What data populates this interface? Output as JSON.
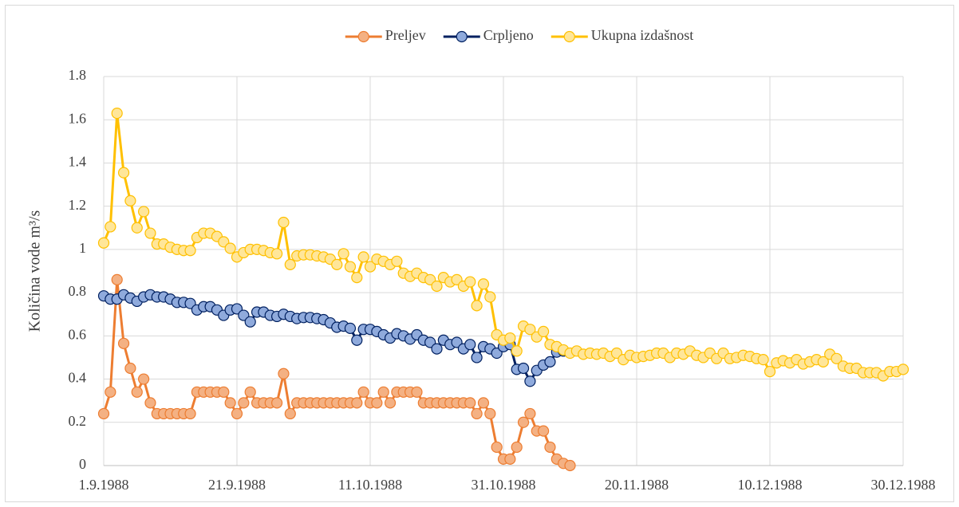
{
  "chart_data": {
    "type": "line",
    "y_label": "Količina vode m³/s",
    "x": [
      "1.9.1988",
      "2.9.1988",
      "3.9.1988",
      "4.9.1988",
      "5.9.1988",
      "6.9.1988",
      "7.9.1988",
      "8.9.1988",
      "9.9.1988",
      "10.9.1988",
      "11.9.1988",
      "12.9.1988",
      "13.9.1988",
      "14.9.1988",
      "15.9.1988",
      "16.9.1988",
      "17.9.1988",
      "18.9.1988",
      "19.9.1988",
      "20.9.1988",
      "21.9.1988",
      "22.9.1988",
      "23.9.1988",
      "24.9.1988",
      "25.9.1988",
      "26.9.1988",
      "27.9.1988",
      "28.9.1988",
      "29.9.1988",
      "30.9.1988",
      "1.10.1988",
      "2.10.1988",
      "3.10.1988",
      "4.10.1988",
      "5.10.1988",
      "6.10.1988",
      "7.10.1988",
      "8.10.1988",
      "9.10.1988",
      "10.10.1988",
      "11.10.1988",
      "12.10.1988",
      "13.10.1988",
      "14.10.1988",
      "15.10.1988",
      "16.10.1988",
      "17.10.1988",
      "18.10.1988",
      "19.10.1988",
      "20.10.1988",
      "21.10.1988",
      "22.10.1988",
      "23.10.1988",
      "24.10.1988",
      "25.10.1988",
      "26.10.1988",
      "27.10.1988",
      "28.10.1988",
      "29.10.1988",
      "30.10.1988",
      "31.10.1988",
      "1.11.1988",
      "2.11.1988",
      "3.11.1988",
      "4.11.1988",
      "5.11.1988",
      "6.11.1988",
      "7.11.1988",
      "8.11.1988",
      "9.11.1988",
      "10.11.1988",
      "11.11.1988",
      "12.11.1988",
      "13.11.1988",
      "14.11.1988",
      "15.11.1988",
      "16.11.1988",
      "17.11.1988",
      "18.11.1988",
      "19.11.1988",
      "20.11.1988",
      "21.11.1988",
      "22.11.1988",
      "23.11.1988",
      "24.11.1988",
      "25.11.1988",
      "26.11.1988",
      "27.11.1988",
      "28.11.1988",
      "29.11.1988",
      "30.11.1988",
      "1.12.1988",
      "2.12.1988",
      "3.12.1988",
      "4.12.1988",
      "5.12.1988",
      "6.12.1988",
      "7.12.1988",
      "8.12.1988",
      "9.12.1988",
      "10.12.1988",
      "11.12.1988",
      "12.12.1988",
      "13.12.1988",
      "14.12.1988",
      "15.12.1988",
      "16.12.1988",
      "17.12.1988",
      "18.12.1988",
      "19.12.1988",
      "20.12.1988",
      "21.12.1988",
      "22.12.1988",
      "23.12.1988",
      "24.12.1988",
      "25.12.1988",
      "26.12.1988",
      "27.12.1988",
      "28.12.1988",
      "29.12.1988",
      "30.12.1988"
    ],
    "xticks": [
      "1.9.1988",
      "21.9.1988",
      "11.10.1988",
      "31.10.1988",
      "20.11.1988",
      "10.12.1988",
      "30.12.1988"
    ],
    "ylim": [
      0,
      1.8
    ],
    "yticks": [
      0,
      0.2,
      0.4,
      0.6,
      0.8,
      1,
      1.2,
      1.4,
      1.6,
      1.8
    ],
    "grid": true,
    "legend": "top",
    "series": [
      {
        "name": "Preljev",
        "color": "#ED7D31",
        "marker_fill": "#F4B183",
        "values": [
          0.24,
          0.34,
          0.86,
          0.565,
          0.45,
          0.34,
          0.4,
          0.29,
          0.24,
          0.24,
          0.24,
          0.24,
          0.24,
          0.24,
          0.34,
          0.34,
          0.34,
          0.34,
          0.34,
          0.29,
          0.24,
          0.29,
          0.34,
          0.29,
          0.29,
          0.29,
          0.29,
          0.425,
          0.24,
          0.29,
          0.29,
          0.29,
          0.29,
          0.29,
          0.29,
          0.29,
          0.29,
          0.29,
          0.29,
          0.34,
          0.29,
          0.29,
          0.34,
          0.29,
          0.34,
          0.34,
          0.34,
          0.34,
          0.29,
          0.29,
          0.29,
          0.29,
          0.29,
          0.29,
          0.29,
          0.29,
          0.24,
          0.29,
          0.24,
          0.085,
          0.03,
          0.03,
          0.085,
          0.2,
          0.24,
          0.16,
          0.16,
          0.085,
          0.03,
          0.01,
          0.0,
          null,
          null,
          null,
          null,
          null,
          null,
          null,
          null,
          null,
          null,
          null,
          null,
          null,
          null,
          null,
          null,
          null,
          null,
          null,
          null,
          null,
          null,
          null,
          null,
          null,
          null,
          null,
          null,
          null,
          null,
          null,
          null,
          null,
          null,
          null,
          null,
          null,
          null,
          null,
          null,
          null,
          null,
          null,
          null,
          null,
          null,
          null,
          null,
          null,
          null
        ]
      },
      {
        "name": "Crpljeno",
        "color": "#002060",
        "marker_fill": "#8FAADC",
        "values": [
          0.785,
          0.77,
          0.77,
          0.79,
          0.775,
          0.76,
          0.78,
          0.79,
          0.78,
          0.78,
          0.77,
          0.755,
          0.755,
          0.75,
          0.72,
          0.735,
          0.735,
          0.72,
          0.695,
          0.72,
          0.725,
          0.695,
          0.665,
          0.71,
          0.71,
          0.695,
          0.69,
          0.7,
          0.69,
          0.68,
          0.685,
          0.685,
          0.68,
          0.675,
          0.66,
          0.64,
          0.645,
          0.635,
          0.58,
          0.63,
          0.63,
          0.62,
          0.605,
          0.59,
          0.61,
          0.6,
          0.585,
          0.605,
          0.58,
          0.57,
          0.54,
          0.58,
          0.56,
          0.57,
          0.54,
          0.56,
          0.5,
          0.55,
          0.54,
          0.52,
          0.55,
          0.56,
          0.445,
          0.45,
          0.39,
          0.44,
          0.465,
          0.48,
          0.525,
          0.53,
          null,
          null,
          null,
          null,
          null,
          null,
          null,
          null,
          null,
          null,
          null,
          null,
          null,
          null,
          null,
          null,
          null,
          null,
          null,
          null,
          null,
          null,
          null,
          null,
          null,
          null,
          null,
          null,
          null,
          null,
          null,
          null,
          null,
          null,
          null,
          null,
          null,
          null,
          null,
          null,
          null,
          null,
          null,
          null,
          null,
          null,
          null,
          null,
          null,
          null,
          null
        ]
      },
      {
        "name": "Ukupna izdašnost",
        "color": "#FFC000",
        "marker_fill": "#FFE699",
        "values": [
          1.03,
          1.105,
          1.63,
          1.355,
          1.225,
          1.1,
          1.175,
          1.075,
          1.025,
          1.025,
          1.01,
          1.0,
          0.995,
          0.995,
          1.055,
          1.075,
          1.075,
          1.06,
          1.035,
          1.005,
          0.965,
          0.985,
          1.0,
          1.0,
          0.995,
          0.985,
          0.98,
          1.125,
          0.93,
          0.97,
          0.975,
          0.975,
          0.97,
          0.965,
          0.955,
          0.93,
          0.98,
          0.92,
          0.87,
          0.965,
          0.92,
          0.955,
          0.945,
          0.93,
          0.945,
          0.89,
          0.875,
          0.89,
          0.87,
          0.86,
          0.83,
          0.87,
          0.85,
          0.86,
          0.83,
          0.85,
          0.74,
          0.84,
          0.78,
          0.605,
          0.58,
          0.59,
          0.53,
          0.645,
          0.63,
          0.595,
          0.62,
          0.56,
          0.55,
          0.535,
          0.52,
          0.53,
          0.515,
          0.52,
          0.515,
          0.52,
          0.505,
          0.52,
          0.49,
          0.51,
          0.5,
          0.505,
          0.51,
          0.52,
          0.52,
          0.5,
          0.52,
          0.515,
          0.53,
          0.51,
          0.5,
          0.52,
          0.495,
          0.52,
          0.495,
          0.5,
          0.51,
          0.505,
          0.495,
          0.49,
          0.435,
          0.475,
          0.485,
          0.475,
          0.49,
          0.47,
          0.48,
          0.49,
          0.48,
          0.515,
          0.495,
          0.46,
          0.45,
          0.45,
          0.43,
          0.43,
          0.43,
          0.415,
          0.435,
          0.435,
          0.445
        ]
      }
    ]
  }
}
